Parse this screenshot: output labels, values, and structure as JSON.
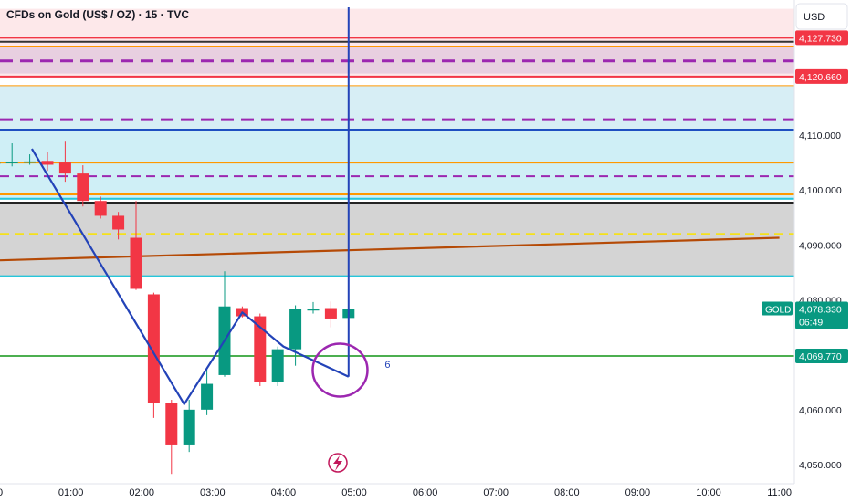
{
  "header": {
    "title": "CFDs on Gold (US$ / OZ) · 15 · TVC",
    "currency": "USD"
  },
  "colors": {
    "bull": "#089981",
    "bear": "#f23645",
    "trend": "#2343b8",
    "circle": "#9c27b0",
    "brown_line": "#b54a06",
    "green_level": "#4caf50",
    "cyan_level": "#26c6da"
  },
  "chart_data": {
    "type": "candlestick",
    "symbol": "GOLD",
    "ylim": [
      4047,
      4133
    ],
    "xlim": [
      0,
      11
    ],
    "x_ticks": [
      "0",
      "01:00",
      "02:00",
      "03:00",
      "04:00",
      "05:00",
      "06:00",
      "07:00",
      "08:00",
      "09:00",
      "10:00",
      "11:00"
    ],
    "y_ticks": [
      4050,
      4060,
      4070,
      4080,
      4090,
      4100,
      4110
    ],
    "y_tick_labels": [
      "4,050.000",
      "4,060.000",
      "4,070.000",
      "4,080.000",
      "4,090.000",
      "4,100.000",
      "4,110.000"
    ],
    "candles": [
      {
        "t": -0.08,
        "o": 4105.0,
        "h": 4106.2,
        "l": 4104.3,
        "c": 4105.0
      },
      {
        "t": 0.17,
        "o": 4104.9,
        "h": 4108.5,
        "l": 4104.3,
        "c": 4105.1
      },
      {
        "t": 0.42,
        "o": 4105.0,
        "h": 4106.5,
        "l": 4104.6,
        "c": 4105.2
      },
      {
        "t": 0.67,
        "o": 4105.3,
        "h": 4107.0,
        "l": 4103.5,
        "c": 4104.6
      },
      {
        "t": 0.92,
        "o": 4105.0,
        "h": 4108.8,
        "l": 4101.5,
        "c": 4103.0
      },
      {
        "t": 1.17,
        "o": 4103.0,
        "h": 4104.5,
        "l": 4097.0,
        "c": 4098.0
      },
      {
        "t": 1.42,
        "o": 4098.0,
        "h": 4098.8,
        "l": 4094.8,
        "c": 4095.3
      },
      {
        "t": 1.67,
        "o": 4095.3,
        "h": 4096.0,
        "l": 4091.0,
        "c": 4092.8
      },
      {
        "t": 1.92,
        "o": 4091.3,
        "h": 4098.0,
        "l": 4081.8,
        "c": 4082.0
      },
      {
        "t": 2.17,
        "o": 4081.0,
        "h": 4081.3,
        "l": 4058.5,
        "c": 4061.3
      },
      {
        "t": 2.42,
        "o": 4061.3,
        "h": 4061.8,
        "l": 4048.3,
        "c": 4053.5
      },
      {
        "t": 2.67,
        "o": 4053.5,
        "h": 4061.8,
        "l": 4052.3,
        "c": 4060.0
      },
      {
        "t": 2.92,
        "o": 4060.0,
        "h": 4067.6,
        "l": 4059.0,
        "c": 4064.7
      },
      {
        "t": 3.17,
        "o": 4066.3,
        "h": 4085.2,
        "l": 4066.0,
        "c": 4078.8
      },
      {
        "t": 3.42,
        "o": 4078.5,
        "h": 4078.8,
        "l": 4076.8,
        "c": 4077.0
      },
      {
        "t": 3.67,
        "o": 4077.0,
        "h": 4077.5,
        "l": 4064.3,
        "c": 4065.0
      },
      {
        "t": 3.92,
        "o": 4065.0,
        "h": 4071.5,
        "l": 4064.3,
        "c": 4071.0
      },
      {
        "t": 4.17,
        "o": 4071.0,
        "h": 4079.0,
        "l": 4068.0,
        "c": 4078.3
      },
      {
        "t": 4.42,
        "o": 4078.2,
        "h": 4079.6,
        "l": 4077.5,
        "c": 4078.3
      },
      {
        "t": 4.67,
        "o": 4078.5,
        "h": 4079.7,
        "l": 4075.0,
        "c": 4076.6
      },
      {
        "t": 4.92,
        "o": 4076.7,
        "h": 4079.8,
        "l": 4075.2,
        "c": 4078.3
      }
    ],
    "zones": [
      {
        "from": 4120.3,
        "to": 4133.0,
        "color": "#fde8ea"
      },
      {
        "from": 4121.2,
        "to": 4126.2,
        "color": "#e8cfe0"
      },
      {
        "from": 4111.0,
        "to": 4119.0,
        "color": "#d7eef5"
      },
      {
        "from": 4098.2,
        "to": 4111.0,
        "color": "#cfeff6"
      },
      {
        "from": 4084.2,
        "to": 4097.7,
        "color": "#d4d4d4"
      }
    ],
    "levels": [
      {
        "y": 4127.73,
        "color": "#f23645",
        "style": "solid",
        "width": 2,
        "label": "4,127.730",
        "label_bg": "#f23645"
      },
      {
        "y": 4127.0,
        "color": "#333333",
        "style": "solid",
        "width": 2
      },
      {
        "y": 4126.2,
        "color": "#ff9800",
        "style": "solid",
        "width": 1
      },
      {
        "y": 4123.5,
        "color": "#9c27b0",
        "style": "dashed",
        "width": 3
      },
      {
        "y": 4120.66,
        "color": "#f23645",
        "style": "solid",
        "width": 2,
        "label": "4,120.660",
        "label_bg": "#f23645"
      },
      {
        "y": 4119.0,
        "color": "#ff9800",
        "style": "solid",
        "width": 1
      },
      {
        "y": 4112.8,
        "color": "#9c27b0",
        "style": "dashed",
        "width": 3
      },
      {
        "y": 4111.0,
        "color": "#1e4fc1",
        "style": "solid",
        "width": 2
      },
      {
        "y": 4105.0,
        "color": "#ff9800",
        "style": "solid",
        "width": 2
      },
      {
        "y": 4102.5,
        "color": "#9c27b0",
        "style": "dashed",
        "width": 2
      },
      {
        "y": 4099.2,
        "color": "#ff9800",
        "style": "solid",
        "width": 2
      },
      {
        "y": 4098.4,
        "color": "#26c6da",
        "style": "solid",
        "width": 2
      },
      {
        "y": 4097.7,
        "color": "#222222",
        "style": "solid",
        "width": 2
      },
      {
        "y": 4092.0,
        "color": "#f5e11b",
        "style": "dashed",
        "width": 2
      },
      {
        "y": 4084.3,
        "color": "#26c6da",
        "style": "solid",
        "width": 2
      },
      {
        "y": 4069.77,
        "color": "#4caf50",
        "style": "solid",
        "width": 2,
        "label": "4,069.770",
        "label_bg": "#089981"
      }
    ],
    "trend_line": {
      "x1": 0,
      "y1": 4087.2,
      "x2": 11,
      "y2": 4091.3,
      "color": "#b54a06"
    },
    "zigzag": [
      {
        "t": 0.45,
        "y": 4107.5
      },
      {
        "t": 2.6,
        "y": 4061.0
      },
      {
        "t": 3.42,
        "y": 4077.7
      },
      {
        "t": 4.0,
        "y": 4071.5
      },
      {
        "t": 4.92,
        "y": 4066.0
      }
    ],
    "vertical_line": {
      "t": 4.92,
      "y_top": 4134.0,
      "y_bottom": 4066.0
    },
    "circle_marker": {
      "t": 4.8,
      "y": 4067.2
    },
    "annotation_text": "6",
    "annotation_pos": {
      "t": 5.43,
      "y": 4067.6
    },
    "last_price": {
      "symbol": "GOLD",
      "value": 4078.33,
      "label": "4,078.330",
      "countdown": "06:49"
    }
  }
}
